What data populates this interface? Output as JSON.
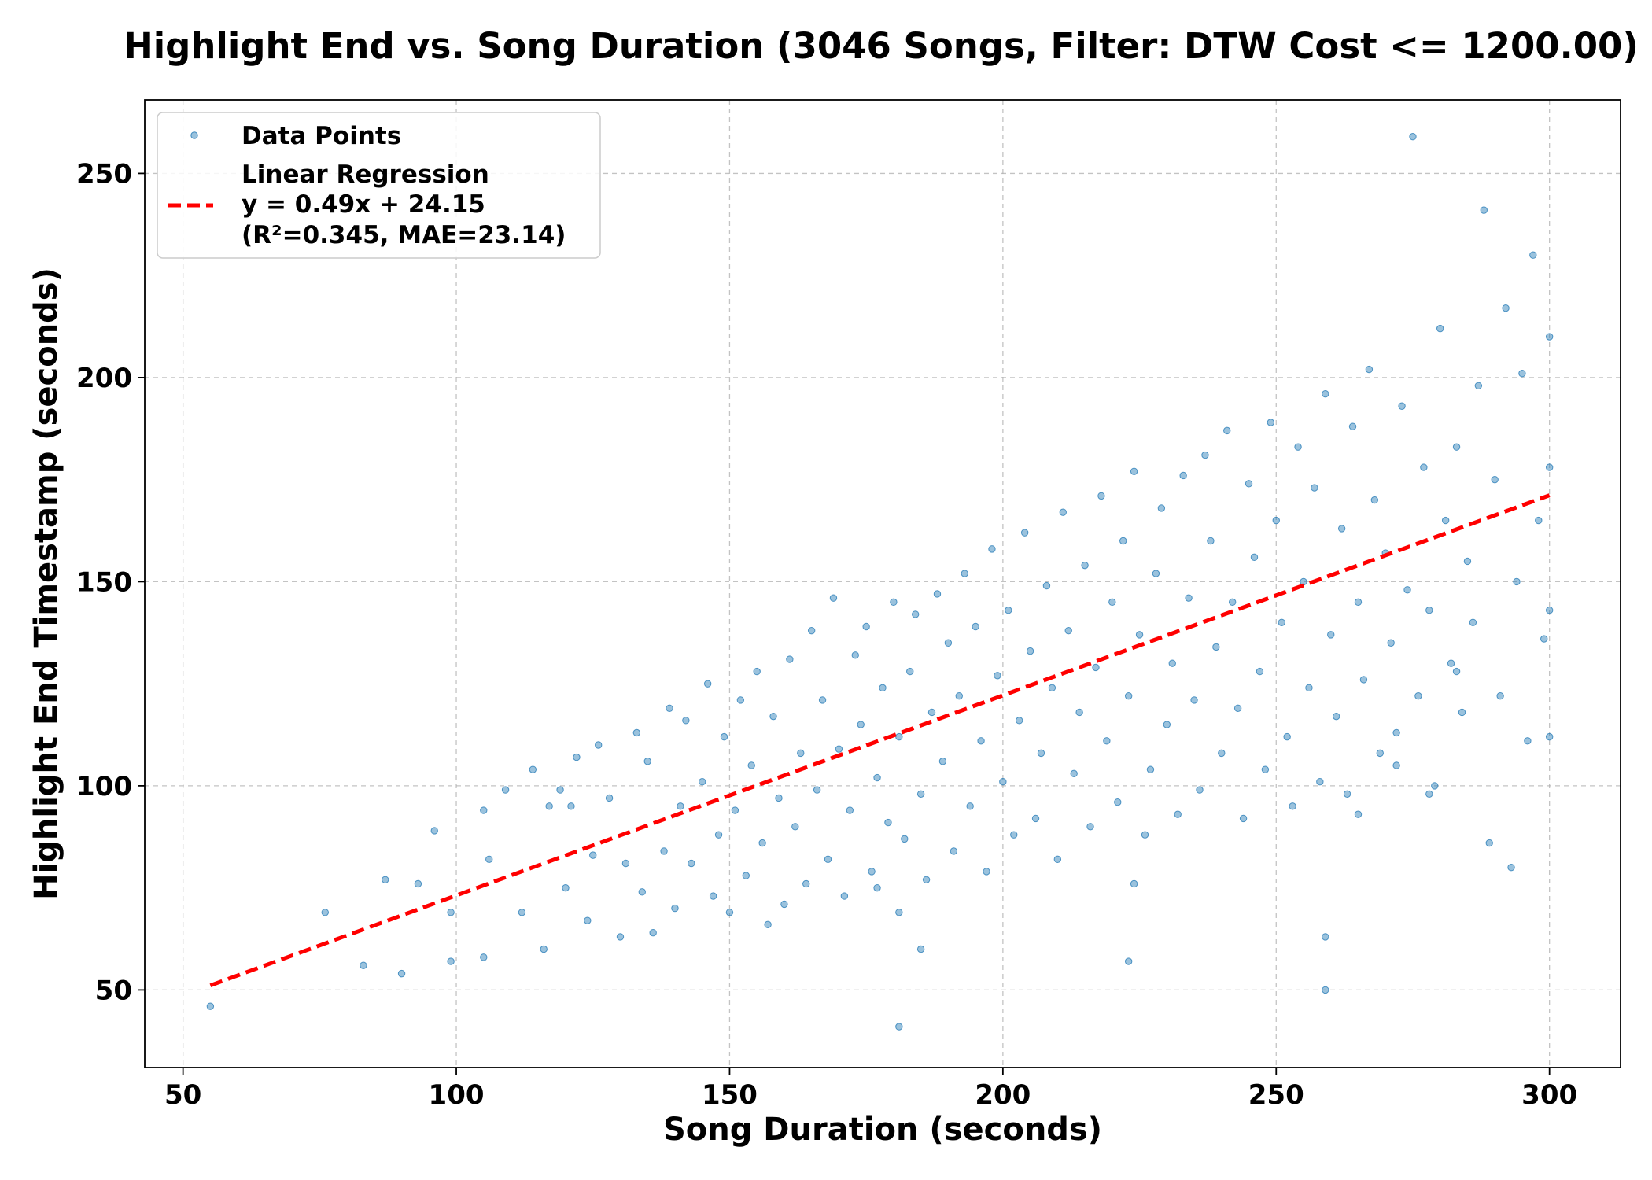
{
  "chart_data": {
    "type": "scatter",
    "title": "Highlight End vs. Song Duration (3046 Songs, Filter: DTW Cost <= 1200.00)",
    "xlabel": "Song Duration (seconds)",
    "ylabel": "Highlight End Timestamp (seconds)",
    "xlim": [
      43,
      313
    ],
    "ylim": [
      31,
      268
    ],
    "xticks": [
      50,
      100,
      150,
      200,
      250,
      300
    ],
    "yticks": [
      50,
      100,
      150,
      200,
      250
    ],
    "grid": true,
    "legend_position": "top-left",
    "series": [
      {
        "name": "Data Points",
        "kind": "scatter",
        "color": "#1f77b4",
        "point_count": 3046,
        "points": [
          [
            55,
            46
          ],
          [
            76,
            69
          ],
          [
            83,
            56
          ],
          [
            87,
            77
          ],
          [
            90,
            54
          ],
          [
            93,
            76
          ],
          [
            96,
            89
          ],
          [
            99,
            57
          ],
          [
            99,
            69
          ],
          [
            105,
            58
          ],
          [
            105,
            94
          ],
          [
            106,
            82
          ],
          [
            109,
            99
          ],
          [
            112,
            69
          ],
          [
            114,
            104
          ],
          [
            116,
            60
          ],
          [
            117,
            95
          ],
          [
            119,
            99
          ],
          [
            120,
            75
          ],
          [
            121,
            95
          ],
          [
            122,
            107
          ],
          [
            124,
            67
          ],
          [
            125,
            83
          ],
          [
            126,
            110
          ],
          [
            128,
            97
          ],
          [
            130,
            63
          ],
          [
            131,
            81
          ],
          [
            133,
            113
          ],
          [
            134,
            74
          ],
          [
            135,
            106
          ],
          [
            136,
            64
          ],
          [
            138,
            84
          ],
          [
            139,
            119
          ],
          [
            140,
            70
          ],
          [
            141,
            95
          ],
          [
            142,
            116
          ],
          [
            143,
            81
          ],
          [
            145,
            101
          ],
          [
            146,
            125
          ],
          [
            147,
            73
          ],
          [
            148,
            88
          ],
          [
            149,
            112
          ],
          [
            150,
            69
          ],
          [
            151,
            94
          ],
          [
            152,
            121
          ],
          [
            153,
            78
          ],
          [
            154,
            105
          ],
          [
            155,
            128
          ],
          [
            156,
            86
          ],
          [
            157,
            66
          ],
          [
            158,
            117
          ],
          [
            159,
            97
          ],
          [
            160,
            71
          ],
          [
            161,
            131
          ],
          [
            162,
            90
          ],
          [
            163,
            108
          ],
          [
            164,
            76
          ],
          [
            165,
            138
          ],
          [
            166,
            99
          ],
          [
            167,
            121
          ],
          [
            168,
            82
          ],
          [
            169,
            146
          ],
          [
            170,
            109
          ],
          [
            171,
            73
          ],
          [
            172,
            94
          ],
          [
            173,
            132
          ],
          [
            174,
            115
          ],
          [
            175,
            139
          ],
          [
            176,
            79
          ],
          [
            177,
            102
          ],
          [
            178,
            124
          ],
          [
            179,
            91
          ],
          [
            180,
            145
          ],
          [
            181,
            112
          ],
          [
            182,
            87
          ],
          [
            183,
            128
          ],
          [
            184,
            142
          ],
          [
            185,
            98
          ],
          [
            186,
            77
          ],
          [
            187,
            118
          ],
          [
            188,
            147
          ],
          [
            189,
            106
          ],
          [
            190,
            135
          ],
          [
            191,
            84
          ],
          [
            192,
            122
          ],
          [
            193,
            152
          ],
          [
            194,
            95
          ],
          [
            195,
            139
          ],
          [
            196,
            111
          ],
          [
            197,
            79
          ],
          [
            198,
            158
          ],
          [
            199,
            127
          ],
          [
            200,
            101
          ],
          [
            201,
            143
          ],
          [
            202,
            88
          ],
          [
            203,
            116
          ],
          [
            204,
            162
          ],
          [
            205,
            133
          ],
          [
            206,
            92
          ],
          [
            207,
            108
          ],
          [
            208,
            149
          ],
          [
            209,
            124
          ],
          [
            210,
            82
          ],
          [
            211,
            167
          ],
          [
            212,
            138
          ],
          [
            213,
            103
          ],
          [
            214,
            118
          ],
          [
            215,
            154
          ],
          [
            216,
            90
          ],
          [
            217,
            129
          ],
          [
            218,
            171
          ],
          [
            219,
            111
          ],
          [
            220,
            145
          ],
          [
            221,
            96
          ],
          [
            222,
            160
          ],
          [
            223,
            122
          ],
          [
            224,
            177
          ],
          [
            225,
            137
          ],
          [
            226,
            88
          ],
          [
            227,
            104
          ],
          [
            228,
            152
          ],
          [
            229,
            168
          ],
          [
            230,
            115
          ],
          [
            231,
            130
          ],
          [
            232,
            93
          ],
          [
            233,
            176
          ],
          [
            234,
            146
          ],
          [
            235,
            121
          ],
          [
            236,
            99
          ],
          [
            237,
            181
          ],
          [
            238,
            160
          ],
          [
            239,
            134
          ],
          [
            240,
            108
          ],
          [
            241,
            187
          ],
          [
            242,
            145
          ],
          [
            243,
            119
          ],
          [
            244,
            92
          ],
          [
            245,
            174
          ],
          [
            246,
            156
          ],
          [
            247,
            128
          ],
          [
            248,
            104
          ],
          [
            249,
            189
          ],
          [
            250,
            165
          ],
          [
            251,
            140
          ],
          [
            252,
            112
          ],
          [
            253,
            95
          ],
          [
            254,
            183
          ],
          [
            255,
            150
          ],
          [
            256,
            124
          ],
          [
            257,
            173
          ],
          [
            258,
            101
          ],
          [
            259,
            196
          ],
          [
            260,
            137
          ],
          [
            261,
            117
          ],
          [
            262,
            163
          ],
          [
            263,
            98
          ],
          [
            264,
            188
          ],
          [
            265,
            145
          ],
          [
            266,
            126
          ],
          [
            267,
            202
          ],
          [
            268,
            170
          ],
          [
            269,
            108
          ],
          [
            270,
            157
          ],
          [
            271,
            135
          ],
          [
            272,
            113
          ],
          [
            273,
            193
          ],
          [
            274,
            148
          ],
          [
            275,
            259
          ],
          [
            276,
            122
          ],
          [
            277,
            178
          ],
          [
            278,
            143
          ],
          [
            279,
            100
          ],
          [
            280,
            212
          ],
          [
            281,
            165
          ],
          [
            282,
            130
          ],
          [
            283,
            183
          ],
          [
            284,
            118
          ],
          [
            285,
            155
          ],
          [
            286,
            140
          ],
          [
            287,
            198
          ],
          [
            288,
            241
          ],
          [
            289,
            86
          ],
          [
            290,
            175
          ],
          [
            291,
            122
          ],
          [
            292,
            217
          ],
          [
            293,
            80
          ],
          [
            294,
            150
          ],
          [
            295,
            201
          ],
          [
            296,
            111
          ],
          [
            297,
            230
          ],
          [
            298,
            165
          ],
          [
            299,
            136
          ],
          [
            300,
            210
          ],
          [
            300,
            112
          ],
          [
            300,
            178
          ],
          [
            300,
            143
          ],
          [
            259,
            63
          ],
          [
            259,
            50
          ],
          [
            181,
            41
          ],
          [
            181,
            69
          ],
          [
            177,
            75
          ],
          [
            185,
            60
          ],
          [
            223,
            57
          ],
          [
            224,
            76
          ],
          [
            278,
            98
          ],
          [
            272,
            105
          ],
          [
            265,
            93
          ],
          [
            283,
            128
          ]
        ]
      },
      {
        "name": "Linear Regression\ny = 0.49x + 24.15\n(R²=0.345, MAE=23.14)",
        "kind": "line",
        "color": "#ff0000",
        "linestyle": "dashed",
        "slope": 0.49,
        "intercept": 24.15,
        "x_range": [
          55,
          300
        ]
      }
    ]
  },
  "legend": {
    "items": [
      {
        "label_lines": [
          "Data Points"
        ]
      },
      {
        "label_lines": [
          "Linear Regression",
          "y = 0.49x + 24.15",
          "(R²=0.345, MAE=23.14)"
        ]
      }
    ]
  }
}
